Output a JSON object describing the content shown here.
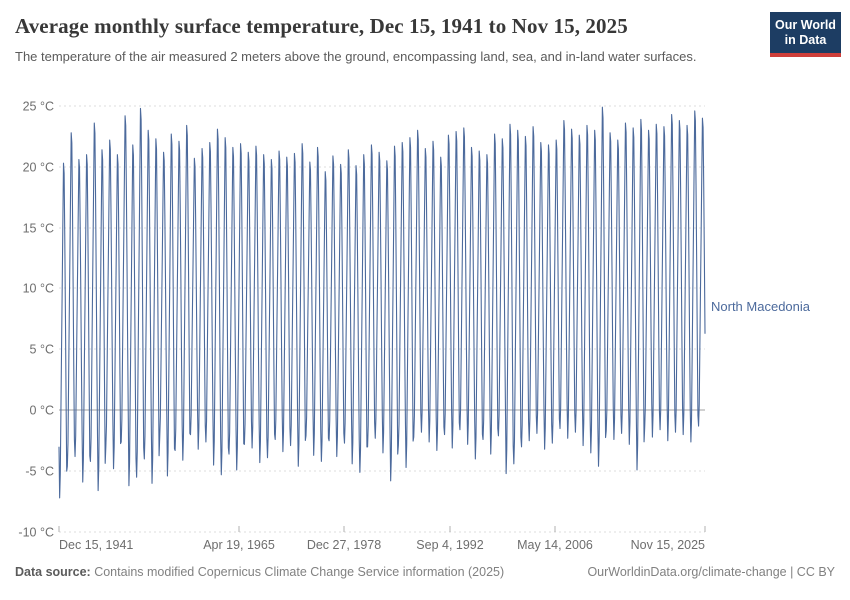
{
  "header": {
    "title": "Average monthly surface temperature, Dec 15, 1941 to Nov 15, 2025",
    "subtitle": "The temperature of the air measured 2 meters above the ground, encompassing land, sea, and in-land water surfaces.",
    "logo": {
      "line1": "Our World",
      "line2": "in Data"
    }
  },
  "footer": {
    "source_label": "Data source:",
    "source_text": " Contains modified Copernicus Climate Change Service information (2025)",
    "credit": "OurWorldinData.org/climate-change | CC BY"
  },
  "colors": {
    "line": "#4c6a9c",
    "grid": "#dddddd",
    "zero_line": "#a1a1a1",
    "axis_tick": "#b0b0b0",
    "logo_navy": "#1d3d63",
    "logo_red": "#cf3f3a"
  },
  "chart_data": {
    "type": "line",
    "title": "Average monthly surface temperature, Dec 15, 1941 to Nov 15, 2025",
    "xlabel": "",
    "ylabel": "",
    "unit": "°C",
    "ylim": [
      -10,
      25
    ],
    "grid": "dashed horizontal gridlines, solid line at 0 °C",
    "legend_position": "label at end of line",
    "y_ticks": [
      25,
      20,
      15,
      10,
      5,
      0,
      -5,
      -10
    ],
    "y_tick_labels": [
      "25 °C",
      "20 °C",
      "15 °C",
      "10 °C",
      "5 °C",
      "0 °C",
      "-5 °C",
      "-10 °C"
    ],
    "x_tick_labels": [
      "Dec 15, 1941",
      "Apr 19, 1965",
      "Dec 27, 1978",
      "Sep 4, 1992",
      "May 14, 2006",
      "Nov 15, 2025"
    ],
    "series": [
      {
        "name": "North Macedonia",
        "color": "#4c6a9c",
        "frequency": "monthly",
        "start": {
          "date": "Dec 15, 1941",
          "value": -3.0
        },
        "end_date": "Nov 15, 2025",
        "months_in_last_year": 11,
        "seasonal_shape_jan_to_dec": [
          0,
          0.07,
          0.26,
          0.45,
          0.63,
          0.82,
          1.0,
          0.97,
          0.78,
          0.55,
          0.3,
          0.08
        ],
        "years_min_max": [
          [
            1942,
            -7.2,
            20.3
          ],
          [
            1943,
            -4.6,
            22.8
          ],
          [
            1944,
            -3.8,
            20.6
          ],
          [
            1945,
            -5.9,
            21.0
          ],
          [
            1946,
            -4.2,
            23.6
          ],
          [
            1947,
            -6.6,
            21.4
          ],
          [
            1948,
            -3.0,
            22.2
          ],
          [
            1949,
            -4.8,
            21.0
          ],
          [
            1950,
            -2.6,
            24.2
          ],
          [
            1951,
            -6.2,
            21.8
          ],
          [
            1952,
            -5.5,
            24.8
          ],
          [
            1953,
            -4.0,
            23.0
          ],
          [
            1954,
            -6.0,
            22.3
          ],
          [
            1955,
            -2.2,
            21.2
          ],
          [
            1956,
            -5.4,
            22.7
          ],
          [
            1957,
            -3.3,
            22.1
          ],
          [
            1958,
            -4.1,
            23.4
          ],
          [
            1959,
            -2.0,
            20.7
          ],
          [
            1960,
            -3.2,
            21.5
          ],
          [
            1961,
            -2.6,
            22.0
          ],
          [
            1962,
            -4.5,
            23.1
          ],
          [
            1963,
            -5.3,
            22.4
          ],
          [
            1964,
            -3.6,
            21.6
          ],
          [
            1965,
            -4.9,
            21.9
          ],
          [
            1966,
            -2.8,
            21.2
          ],
          [
            1967,
            -3.1,
            21.7
          ],
          [
            1968,
            -4.3,
            21.0
          ],
          [
            1969,
            -3.9,
            20.6
          ],
          [
            1970,
            -2.4,
            21.3
          ],
          [
            1971,
            -3.4,
            20.8
          ],
          [
            1972,
            -2.9,
            21.1
          ],
          [
            1973,
            -4.6,
            21.9
          ],
          [
            1974,
            -2.1,
            20.4
          ],
          [
            1975,
            -3.7,
            21.6
          ],
          [
            1976,
            -4.2,
            19.6
          ],
          [
            1977,
            -2.5,
            20.9
          ],
          [
            1978,
            -3.8,
            20.2
          ],
          [
            1979,
            -2.7,
            21.4
          ],
          [
            1980,
            -4.4,
            20.1
          ],
          [
            1981,
            -5.1,
            21.0
          ],
          [
            1982,
            -3.0,
            21.8
          ],
          [
            1983,
            -2.3,
            21.2
          ],
          [
            1984,
            -3.5,
            20.5
          ],
          [
            1985,
            -5.8,
            21.7
          ],
          [
            1986,
            -2.9,
            22.0
          ],
          [
            1987,
            -4.7,
            22.4
          ],
          [
            1988,
            -2.2,
            23.0
          ],
          [
            1989,
            -1.8,
            21.5
          ],
          [
            1990,
            -2.6,
            22.1
          ],
          [
            1991,
            -3.3,
            20.8
          ],
          [
            1992,
            -2.0,
            22.6
          ],
          [
            1993,
            -3.1,
            22.9
          ],
          [
            1994,
            -1.6,
            23.2
          ],
          [
            1995,
            -2.8,
            21.6
          ],
          [
            1996,
            -4.0,
            21.3
          ],
          [
            1997,
            -2.4,
            21.0
          ],
          [
            1998,
            -3.6,
            22.7
          ],
          [
            1999,
            -2.1,
            22.3
          ],
          [
            2000,
            -5.2,
            23.5
          ],
          [
            2001,
            -4.4,
            23.0
          ],
          [
            2002,
            -3.0,
            22.5
          ],
          [
            2003,
            -2.5,
            23.3
          ],
          [
            2004,
            -1.9,
            22.0
          ],
          [
            2005,
            -3.2,
            21.8
          ],
          [
            2006,
            -2.7,
            22.2
          ],
          [
            2007,
            -1.5,
            23.8
          ],
          [
            2008,
            -2.3,
            23.1
          ],
          [
            2009,
            -1.8,
            22.6
          ],
          [
            2010,
            -2.9,
            23.4
          ],
          [
            2011,
            -3.5,
            23.0
          ],
          [
            2012,
            -4.6,
            24.9
          ],
          [
            2013,
            -1.7,
            22.8
          ],
          [
            2014,
            -2.4,
            22.2
          ],
          [
            2015,
            -1.9,
            23.6
          ],
          [
            2016,
            -2.8,
            23.2
          ],
          [
            2017,
            -4.9,
            23.9
          ],
          [
            2018,
            -1.4,
            23.0
          ],
          [
            2019,
            -2.2,
            23.5
          ],
          [
            2020,
            -1.6,
            23.3
          ],
          [
            2021,
            -2.5,
            24.3
          ],
          [
            2022,
            -1.8,
            23.8
          ],
          [
            2023,
            -2.0,
            23.4
          ],
          [
            2024,
            -2.6,
            24.6
          ],
          [
            2025,
            -1.3,
            24.0
          ]
        ]
      }
    ]
  }
}
